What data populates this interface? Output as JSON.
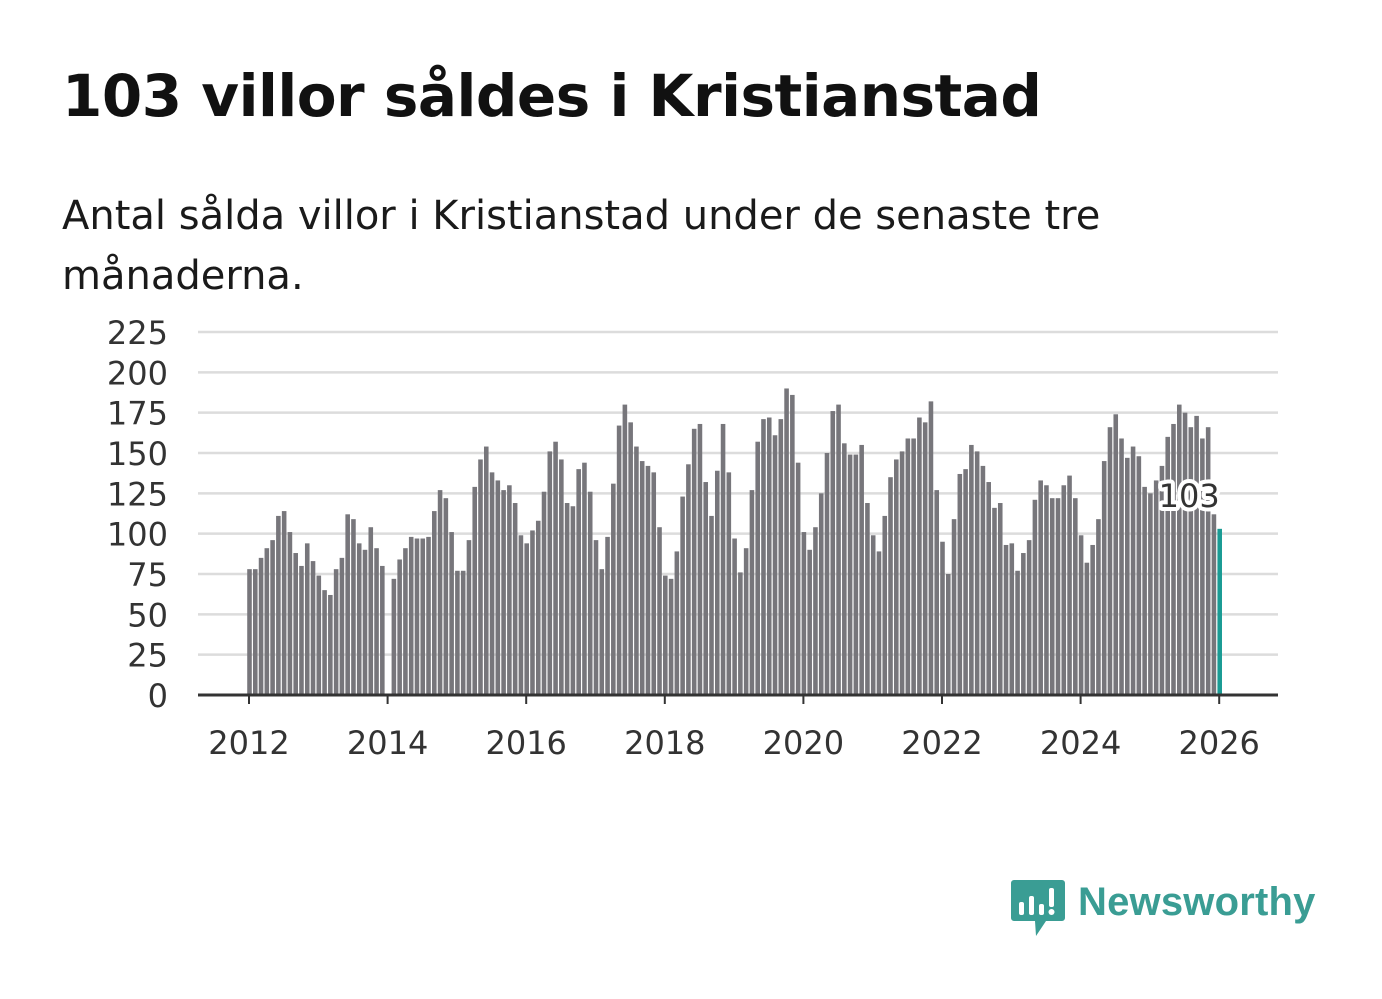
{
  "title": "103 villor såldes i Kristianstad",
  "subtitle": "Antal sålda villor i Kristianstad under de senaste tre månaderna.",
  "brand": {
    "name": "Newsworthy",
    "icon": "newsworthy-logo-icon",
    "color": "#3a9d94"
  },
  "colors": {
    "bar": "#77767b",
    "highlight": "#1a9b94",
    "grid": "#dcdcdc",
    "axis": "#333333"
  },
  "chart_data": {
    "type": "bar",
    "title": "103 villor såldes i Kristianstad",
    "xlabel": "",
    "ylabel": "",
    "ylim": [
      0,
      225
    ],
    "y_ticks": [
      "0",
      "25",
      "50",
      "75",
      "100",
      "125",
      "150",
      "175",
      "200",
      "225"
    ],
    "x_ticks": [
      "2012",
      "2014",
      "2016",
      "2018",
      "2020",
      "2022",
      "2024",
      "2026"
    ],
    "start": "2012-01",
    "end": "2026-02",
    "highlight_label": "103",
    "series": [
      {
        "name": "Antal sålda villor (rullande tre månader)",
        "values": [
          78,
          78,
          85,
          91,
          96,
          111,
          114,
          101,
          88,
          80,
          94,
          83,
          74,
          65,
          62,
          78,
          85,
          112,
          109,
          94,
          90,
          104,
          91,
          80,
          null,
          72,
          84,
          91,
          98,
          97,
          97,
          98,
          114,
          127,
          122,
          101,
          77,
          77,
          96,
          129,
          146,
          154,
          138,
          133,
          127,
          130,
          119,
          99,
          94,
          102,
          108,
          126,
          151,
          157,
          146,
          119,
          117,
          140,
          144,
          126,
          96,
          78,
          98,
          131,
          167,
          180,
          169,
          154,
          145,
          142,
          138,
          104,
          74,
          72,
          89,
          123,
          143,
          165,
          168,
          132,
          111,
          139,
          168,
          138,
          97,
          76,
          91,
          127,
          157,
          171,
          172,
          161,
          171,
          190,
          186,
          144,
          101,
          90,
          104,
          125,
          150,
          176,
          180,
          156,
          149,
          149,
          155,
          119,
          99,
          89,
          111,
          135,
          146,
          151,
          159,
          159,
          172,
          169,
          182,
          127,
          95,
          75,
          109,
          137,
          140,
          155,
          151,
          142,
          132,
          116,
          119,
          93,
          94,
          77,
          88,
          96,
          121,
          133,
          130,
          122,
          122,
          130,
          136,
          122,
          99,
          82,
          93,
          109,
          145,
          166,
          174,
          159,
          147,
          154,
          148,
          129,
          125,
          133,
          142,
          160,
          168,
          180,
          175,
          166,
          173,
          159,
          166,
          112,
          103
        ]
      }
    ]
  }
}
